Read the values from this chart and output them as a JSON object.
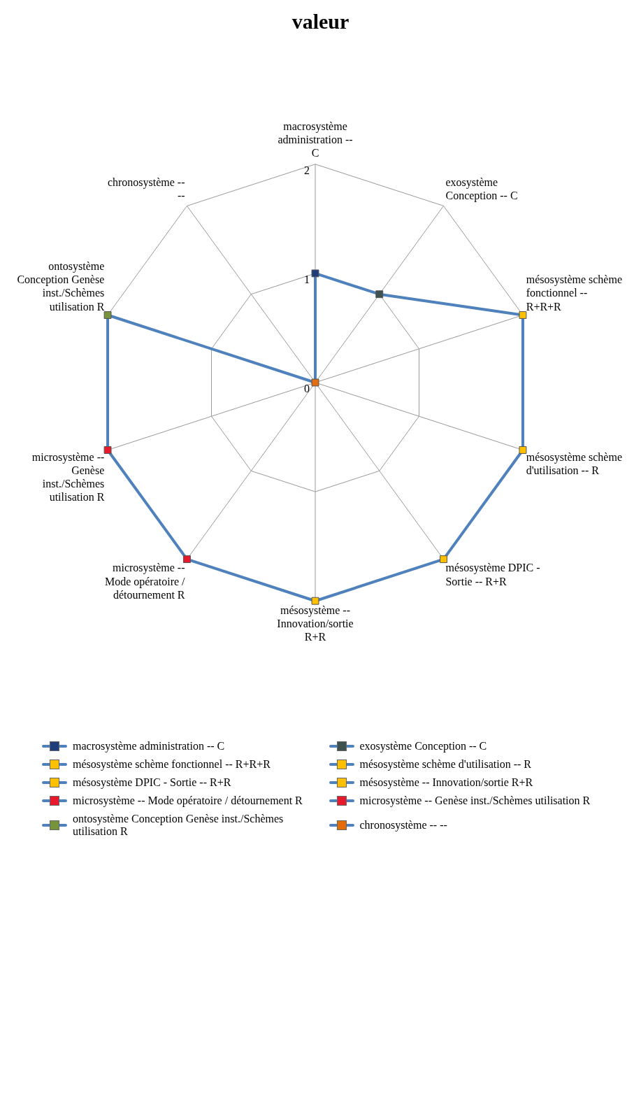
{
  "chart_data": {
    "type": "radar",
    "title": "valeur",
    "categories": [
      "macrosystème administration -- C",
      "exosystème Conception -- C",
      "mésosystème schème fonctionnel -- R+R+R",
      "mésosystème schème d'utilisation -- R",
      "mésosystème DPIC - Sortie -- R+R",
      "mésosystème -- Innovation/sortie R+R",
      "microsystème -- Mode opératoire / détournement R",
      "microsystème -- Genèse inst./Schèmes utilisation R",
      "ontosystème Conception Genèse inst./Schèmes utilisation R",
      "chronosystème -- --"
    ],
    "series": [
      {
        "color": "#4f81bd",
        "colors": [
          "#1f3d7a",
          "#3f5252",
          "#ffc000",
          "#ffc000",
          "#ffc000",
          "#ffc000",
          "#e8192c",
          "#e8192c",
          "#77933c",
          "#e46c0a"
        ],
        "values": [
          1,
          1,
          2,
          2,
          2,
          2,
          2,
          2,
          2,
          0
        ]
      }
    ],
    "ylim": [
      0,
      2
    ],
    "yticks": [
      0,
      1,
      2
    ],
    "grid": true,
    "marker": "square",
    "line_style": "solid"
  }
}
